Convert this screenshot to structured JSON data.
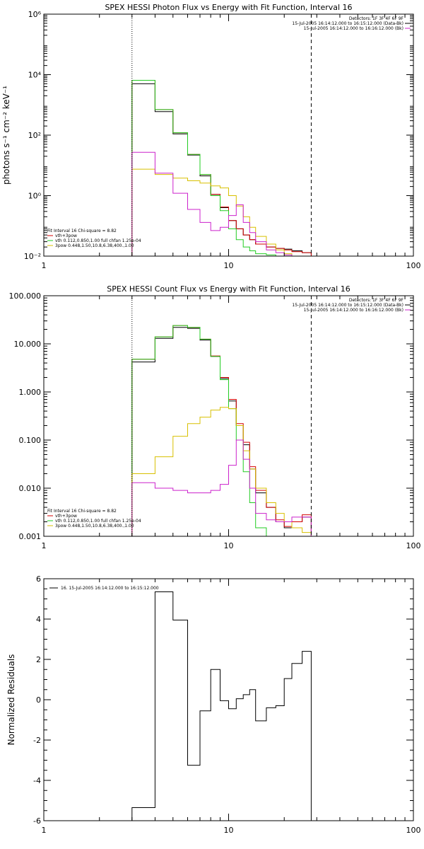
{
  "colors": {
    "data": "#000000",
    "vth_3pow": "#d40000",
    "vth": "#22cc22",
    "3pow": "#d8c000",
    "background": "#cc22cc"
  },
  "chart_data": [
    {
      "type": "line",
      "title": "SPEX HESSI Photon Flux vs Energy with Fit Function, Interval 16",
      "ylabel": "photons s⁻¹ cm⁻² keV⁻¹",
      "xscale": "log",
      "yscale": "log",
      "xlim": [
        1,
        100
      ],
      "ylim": [
        0.01,
        1000000
      ],
      "x_ticks": [
        {
          "value": 1,
          "label": "1"
        },
        {
          "value": 10,
          "label": "10"
        },
        {
          "value": 100,
          "label": "100"
        }
      ],
      "y_ticks": [
        {
          "value": 0.01,
          "label": "10⁻²"
        },
        {
          "value": 1,
          "label": "10⁰"
        },
        {
          "value": 100,
          "label": "10²"
        },
        {
          "value": 10000,
          "label": "10⁴"
        },
        {
          "value": 1000000,
          "label": "10⁶"
        }
      ],
      "vlines": [
        {
          "x": 3,
          "style": "dotted"
        },
        {
          "x": 28,
          "style": "dashed"
        }
      ],
      "info_text": [
        "Detectors: 1F 3F 4F 6F 9F",
        "15-Jul-2005 16:14:12.000 to 16:15:12.000 (Data-Bk)",
        "15-Jul-2005 16:14:12.000 to 16:16:12.000 (Bk)"
      ],
      "legend": {
        "header": "Fit Interval 16    Chi-square = 8.82",
        "entries": [
          {
            "color_key": "vth_3pow",
            "text": "vth+3pow"
          },
          {
            "color_key": "vth",
            "text": "vth 0.112,0.850,1.00  full chfan 1.25e-04"
          },
          {
            "color_key": "3pow",
            "text": "3pow 0.448,1.50,10.8,6.38,400.,1.00"
          }
        ]
      },
      "edges": [
        3,
        4,
        5,
        6,
        7,
        8,
        9,
        10,
        11,
        12,
        13,
        14,
        16,
        18,
        20,
        22,
        25,
        28
      ],
      "series": [
        {
          "color_key": "data",
          "values": [
            5000,
            600,
            110,
            22,
            4.5,
            1.1,
            0.4,
            0.15,
            0.08,
            0.05,
            0.035,
            0.025,
            0.02,
            0.018,
            0.017,
            0.015,
            0.013
          ]
        },
        {
          "color_key": "vth_3pow",
          "values": [
            6500,
            700,
            120,
            23,
            5,
            1.1,
            0.42,
            0.15,
            0.08,
            0.05,
            0.035,
            0.025,
            0.02,
            0.018,
            0.016,
            0.014,
            0.013
          ]
        },
        {
          "color_key": "vth",
          "values": [
            6500,
            700,
            120,
            23,
            5,
            1.0,
            0.32,
            0.08,
            0.035,
            0.02,
            0.015,
            0.012,
            0.011,
            0.01,
            0.01,
            0.01,
            0.01
          ]
        },
        {
          "color_key": "3pow",
          "values": [
            7.5,
            5,
            3.8,
            3.1,
            2.6,
            2.1,
            1.8,
            1.0,
            0.45,
            0.2,
            0.09,
            0.045,
            0.025,
            0.016,
            0.012,
            0.01,
            0.01
          ]
        },
        {
          "color_key": "background",
          "values": [
            27,
            5.5,
            1.2,
            0.35,
            0.13,
            0.07,
            0.09,
            0.22,
            0.5,
            0.13,
            0.06,
            0.03,
            0.016,
            0.013,
            0.011,
            0.01,
            0.01
          ]
        }
      ]
    },
    {
      "type": "line",
      "title": "SPEX HESSI Count Flux vs Energy with Fit Function, Interval 16",
      "ylabel": "",
      "xscale": "log",
      "yscale": "log",
      "xlim": [
        1,
        100
      ],
      "ylim": [
        0.001,
        100
      ],
      "x_ticks": [
        {
          "value": 1,
          "label": "1"
        },
        {
          "value": 10,
          "label": "10"
        },
        {
          "value": 100,
          "label": "100"
        }
      ],
      "y_ticks": [
        {
          "value": 0.001,
          "label": "0.001"
        },
        {
          "value": 0.01,
          "label": "0.010"
        },
        {
          "value": 0.1,
          "label": "0.100"
        },
        {
          "value": 1,
          "label": "1.000"
        },
        {
          "value": 10,
          "label": "10.000"
        },
        {
          "value": 100,
          "label": "100.000"
        }
      ],
      "vlines": [
        {
          "x": 3,
          "style": "dotted"
        },
        {
          "x": 28,
          "style": "dashed"
        }
      ],
      "info_text": [
        "Detectors: 1F 3F 4F 6F 9F",
        "15-Jul-2005 16:14:12.000 to 16:15:12.000 (Data-Bk)",
        "15-Jul-2005 16:14:12.000 to 16:16:12.000 (Bk)"
      ],
      "legend": {
        "header": "Fit Interval 16    Chi-square = 8.82",
        "entries": [
          {
            "color_key": "vth_3pow",
            "text": "vth+3pow"
          },
          {
            "color_key": "vth",
            "text": "vth 0.112,0.850,1.00  full chfan 1.25e-04"
          },
          {
            "color_key": "3pow",
            "text": "3pow 0.448,1.50,10.8,6.38,400.,1.00"
          }
        ]
      },
      "edges": [
        3,
        4,
        5,
        6,
        7,
        8,
        9,
        10,
        11,
        12,
        13,
        14,
        16,
        18,
        20,
        22,
        25,
        28
      ],
      "series": [
        {
          "color_key": "data",
          "values": [
            4.2,
            13,
            22,
            21,
            12,
            5.5,
            1.9,
            0.65,
            0.2,
            0.08,
            0.025,
            0.008,
            0.004,
            0.002,
            0.0015,
            0.002,
            0.0025
          ]
        },
        {
          "color_key": "vth_3pow",
          "values": [
            4.8,
            14,
            24,
            22,
            12.5,
            5.6,
            2.0,
            0.7,
            0.22,
            0.09,
            0.028,
            0.009,
            0.004,
            0.0022,
            0.0016,
            0.002,
            0.0028
          ]
        },
        {
          "color_key": "vth",
          "values": [
            4.8,
            14,
            24,
            22,
            12.5,
            5.5,
            1.8,
            0.45,
            0.1,
            0.022,
            0.005,
            0.0015,
            0.001,
            0.001,
            0.001,
            0.001,
            0.001
          ]
        },
        {
          "color_key": "3pow",
          "values": [
            0.02,
            0.045,
            0.12,
            0.22,
            0.3,
            0.42,
            0.48,
            0.45,
            0.2,
            0.06,
            0.025,
            0.01,
            0.005,
            0.003,
            0.002,
            0.0015,
            0.0012
          ]
        },
        {
          "color_key": "background",
          "values": [
            0.013,
            0.01,
            0.009,
            0.008,
            0.008,
            0.009,
            0.012,
            0.03,
            0.1,
            0.04,
            0.01,
            0.003,
            0.0022,
            0.002,
            0.002,
            0.0025,
            0.0025
          ]
        }
      ]
    },
    {
      "type": "line",
      "title": "",
      "ylabel": "Normalized Residuals",
      "xscale": "log",
      "yscale": "linear",
      "xlim": [
        1,
        100
      ],
      "ylim": [
        -6,
        6
      ],
      "x_ticks": [
        {
          "value": 1,
          "label": "1"
        },
        {
          "value": 10,
          "label": "10"
        },
        {
          "value": 100,
          "label": "100"
        }
      ],
      "y_ticks": [
        {
          "value": -6,
          "label": "-6"
        },
        {
          "value": -4,
          "label": "-4"
        },
        {
          "value": -2,
          "label": "-2"
        },
        {
          "value": 0,
          "label": "0"
        },
        {
          "value": 2,
          "label": "2"
        },
        {
          "value": 4,
          "label": "4"
        },
        {
          "value": 6,
          "label": "6"
        }
      ],
      "vlines": [],
      "info_text": [],
      "legend": {
        "header": "",
        "entries": [
          {
            "color_key": "data",
            "text": "16. 15-Jul-2005 16:14:12.000 to 16:15:12.000"
          }
        ]
      },
      "edges": [
        3,
        4,
        5,
        6,
        7,
        8,
        9,
        10,
        11,
        12,
        13,
        14,
        16,
        18,
        20,
        22,
        25,
        28
      ],
      "series": [
        {
          "color_key": "data",
          "values": [
            -5.35,
            5.35,
            3.95,
            -3.25,
            -0.55,
            1.5,
            -0.05,
            -0.45,
            0.05,
            0.25,
            0.5,
            -1.05,
            -0.4,
            -0.3,
            1.05,
            1.8,
            2.4
          ]
        }
      ]
    }
  ]
}
